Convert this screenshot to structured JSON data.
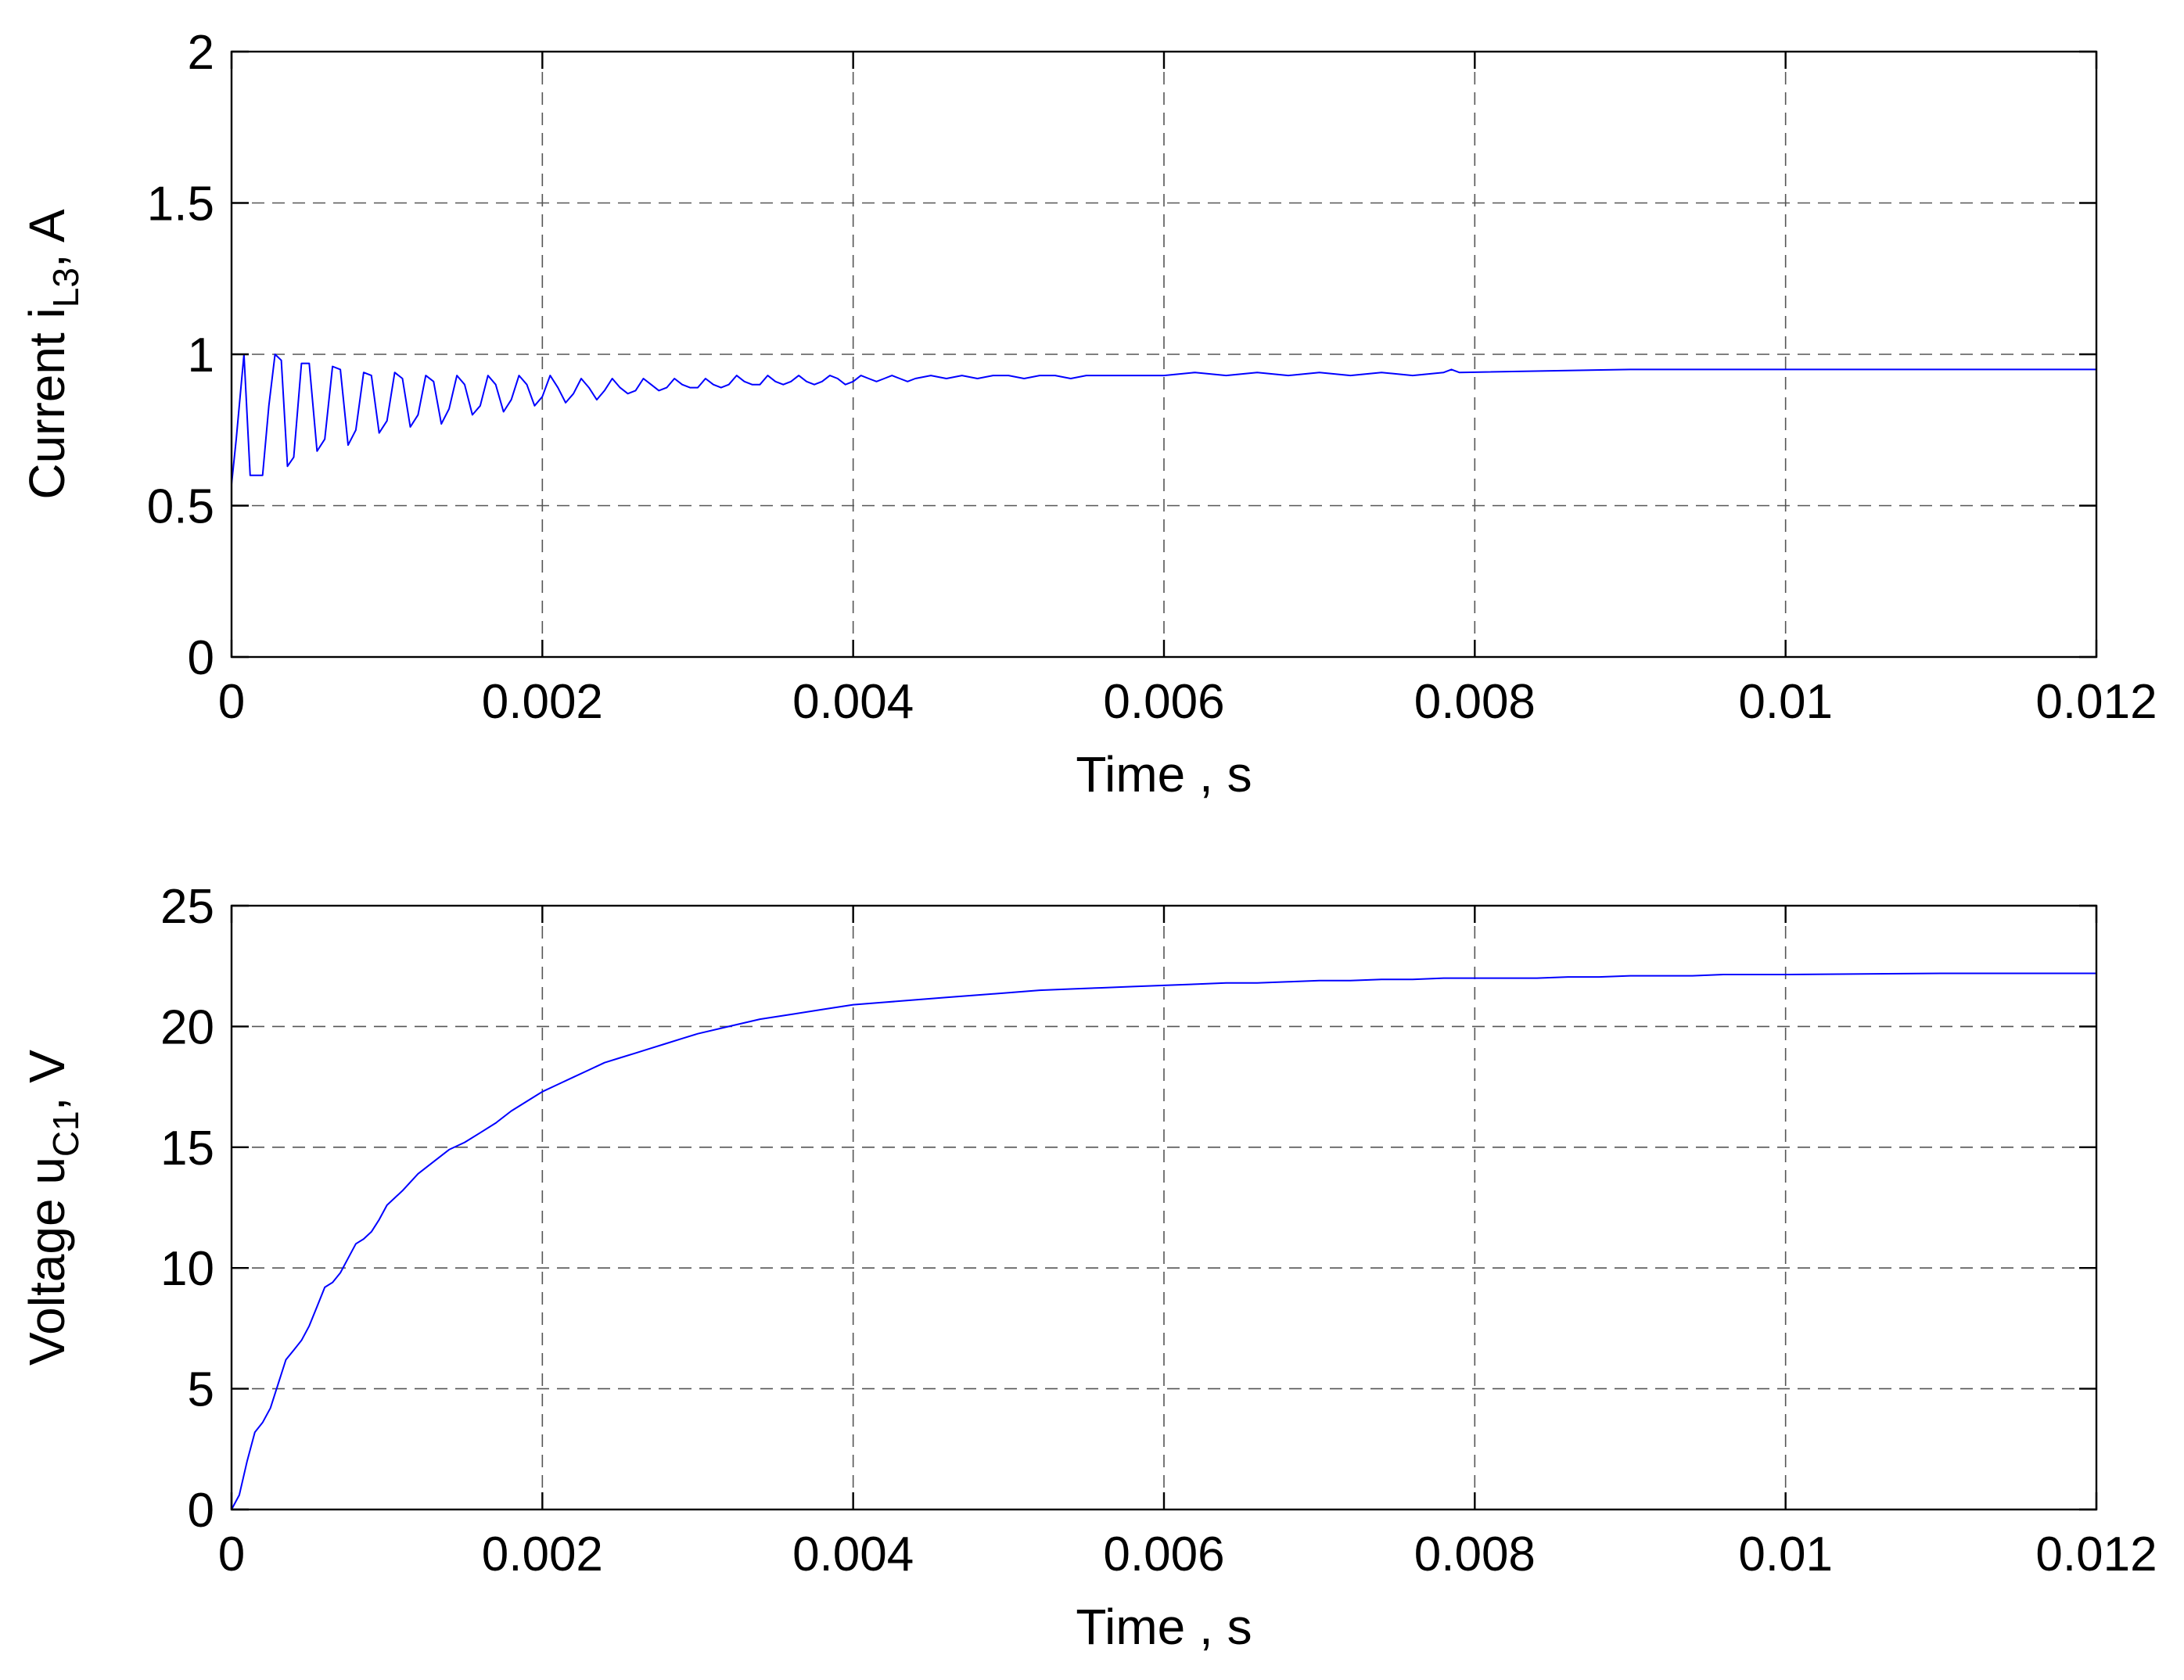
{
  "chart_data": [
    {
      "type": "line",
      "title": "",
      "xlabel": "Time , s",
      "ylabel_prefix": "Current i",
      "ylabel_sub": "L3",
      "ylabel_suffix": ", A",
      "xlim": [
        0,
        0.012
      ],
      "ylim": [
        0,
        2
      ],
      "grid": true,
      "x_ticks": [
        0,
        0.002,
        0.004,
        0.006,
        0.008,
        0.01,
        0.012
      ],
      "x_tick_labels": [
        "0",
        "0.002",
        "0.004",
        "0.006",
        "0.008",
        "0.01",
        "0.012"
      ],
      "y_ticks": [
        0,
        0.5,
        1,
        1.5,
        2
      ],
      "y_tick_labels": [
        "0",
        "0.5",
        "1",
        "1.5",
        "2"
      ],
      "line_color": "#0000ff",
      "series": [
        {
          "x": [
            0,
            3e-05,
            8e-05,
            0.00012,
            0.00016,
            0.0002,
            0.00024,
            0.00028,
            0.00032,
            0.00036,
            0.0004,
            0.00045,
            0.0005,
            0.00055,
            0.0006,
            0.00065,
            0.0007,
            0.00075,
            0.0008,
            0.00085,
            0.0009,
            0.00095,
            0.001,
            0.00105,
            0.0011,
            0.00115,
            0.0012,
            0.00125,
            0.0013,
            0.00135,
            0.0014,
            0.00145,
            0.0015,
            0.00155,
            0.0016,
            0.00165,
            0.0017,
            0.00175,
            0.0018,
            0.00185,
            0.0019,
            0.00195,
            0.002,
            0.00205,
            0.0021,
            0.00215,
            0.0022,
            0.00225,
            0.0023,
            0.00235,
            0.0024,
            0.00245,
            0.0025,
            0.00255,
            0.0026,
            0.00265,
            0.0027,
            0.00275,
            0.0028,
            0.00285,
            0.0029,
            0.00295,
            0.003,
            0.00305,
            0.0031,
            0.00315,
            0.0032,
            0.00325,
            0.0033,
            0.00335,
            0.0034,
            0.00345,
            0.0035,
            0.00355,
            0.0036,
            0.00365,
            0.0037,
            0.00375,
            0.0038,
            0.00385,
            0.0039,
            0.00395,
            0.004,
            0.00405,
            0.0041,
            0.00415,
            0.0042,
            0.00425,
            0.0043,
            0.00435,
            0.0044,
            0.0045,
            0.0046,
            0.0047,
            0.0048,
            0.0049,
            0.005,
            0.0051,
            0.0052,
            0.0053,
            0.0054,
            0.0055,
            0.0056,
            0.0057,
            0.0058,
            0.006,
            0.0062,
            0.0064,
            0.0066,
            0.0068,
            0.007,
            0.0072,
            0.0074,
            0.0076,
            0.0078,
            0.00785,
            0.0079,
            0.009,
            0.01,
            0.011,
            0.012
          ],
          "y": [
            0.57,
            0.72,
            1.0,
            0.6,
            0.6,
            0.6,
            0.83,
            1.0,
            0.98,
            0.63,
            0.66,
            0.97,
            0.97,
            0.68,
            0.72,
            0.96,
            0.95,
            0.7,
            0.75,
            0.94,
            0.93,
            0.74,
            0.78,
            0.94,
            0.92,
            0.76,
            0.8,
            0.93,
            0.91,
            0.77,
            0.82,
            0.93,
            0.9,
            0.8,
            0.83,
            0.93,
            0.9,
            0.81,
            0.85,
            0.93,
            0.9,
            0.83,
            0.86,
            0.93,
            0.89,
            0.84,
            0.87,
            0.92,
            0.89,
            0.85,
            0.88,
            0.92,
            0.89,
            0.87,
            0.88,
            0.92,
            0.9,
            0.88,
            0.89,
            0.92,
            0.9,
            0.89,
            0.89,
            0.92,
            0.9,
            0.89,
            0.9,
            0.93,
            0.91,
            0.9,
            0.9,
            0.93,
            0.91,
            0.9,
            0.91,
            0.93,
            0.91,
            0.9,
            0.91,
            0.93,
            0.92,
            0.9,
            0.91,
            0.93,
            0.92,
            0.91,
            0.92,
            0.93,
            0.92,
            0.91,
            0.92,
            0.93,
            0.92,
            0.93,
            0.92,
            0.93,
            0.93,
            0.92,
            0.93,
            0.93,
            0.92,
            0.93,
            0.93,
            0.93,
            0.93,
            0.93,
            0.94,
            0.93,
            0.94,
            0.93,
            0.94,
            0.93,
            0.94,
            0.93,
            0.94,
            0.95,
            0.94,
            0.95,
            0.95,
            0.95,
            0.95
          ]
        }
      ]
    },
    {
      "type": "line",
      "title": "",
      "xlabel": "Time , s",
      "ylabel_prefix": "Voltage u",
      "ylabel_sub": "C1",
      "ylabel_suffix": ", V",
      "xlim": [
        0,
        0.012
      ],
      "ylim": [
        0,
        25
      ],
      "grid": true,
      "x_ticks": [
        0,
        0.002,
        0.004,
        0.006,
        0.008,
        0.01,
        0.012
      ],
      "x_tick_labels": [
        "0",
        "0.002",
        "0.004",
        "0.006",
        "0.008",
        "0.01",
        "0.012"
      ],
      "y_ticks": [
        0,
        5,
        10,
        15,
        20,
        25
      ],
      "y_tick_labels": [
        "0",
        "5",
        "10",
        "15",
        "20",
        "25"
      ],
      "line_color": "#0000ff",
      "series": [
        {
          "x": [
            0,
            5e-05,
            0.0001,
            0.00015,
            0.0002,
            0.00025,
            0.0003,
            0.00035,
            0.0004,
            0.00045,
            0.0005,
            0.00055,
            0.0006,
            0.00065,
            0.0007,
            0.00075,
            0.0008,
            0.00085,
            0.0009,
            0.00095,
            0.001,
            0.0011,
            0.0012,
            0.0013,
            0.0014,
            0.0015,
            0.0016,
            0.0017,
            0.0018,
            0.0019,
            0.002,
            0.0021,
            0.0022,
            0.0023,
            0.0024,
            0.0025,
            0.0026,
            0.0027,
            0.0028,
            0.0029,
            0.003,
            0.0032,
            0.0034,
            0.0036,
            0.0038,
            0.004,
            0.0042,
            0.0044,
            0.0046,
            0.0048,
            0.005,
            0.0052,
            0.0054,
            0.0056,
            0.0058,
            0.006,
            0.0062,
            0.0064,
            0.0066,
            0.0068,
            0.007,
            0.0072,
            0.0074,
            0.0076,
            0.0078,
            0.008,
            0.0082,
            0.0084,
            0.0086,
            0.0088,
            0.009,
            0.0092,
            0.0094,
            0.0096,
            0.0098,
            0.01,
            0.011,
            0.012
          ],
          "y": [
            0,
            0.6,
            2.0,
            3.2,
            3.6,
            4.2,
            5.2,
            6.2,
            6.6,
            7.0,
            7.6,
            8.4,
            9.2,
            9.4,
            9.8,
            10.4,
            11.0,
            11.2,
            11.5,
            12.0,
            12.6,
            13.2,
            13.9,
            14.4,
            14.9,
            15.2,
            15.6,
            16.0,
            16.5,
            16.9,
            17.3,
            17.6,
            17.9,
            18.2,
            18.5,
            18.7,
            18.9,
            19.1,
            19.3,
            19.5,
            19.7,
            20.0,
            20.3,
            20.5,
            20.7,
            20.9,
            21.0,
            21.1,
            21.2,
            21.3,
            21.4,
            21.5,
            21.55,
            21.6,
            21.65,
            21.7,
            21.75,
            21.8,
            21.8,
            21.85,
            21.9,
            21.9,
            21.95,
            21.95,
            22.0,
            22.0,
            22.0,
            22.0,
            22.05,
            22.05,
            22.1,
            22.1,
            22.1,
            22.15,
            22.15,
            22.15,
            22.2,
            22.2
          ]
        }
      ]
    }
  ]
}
